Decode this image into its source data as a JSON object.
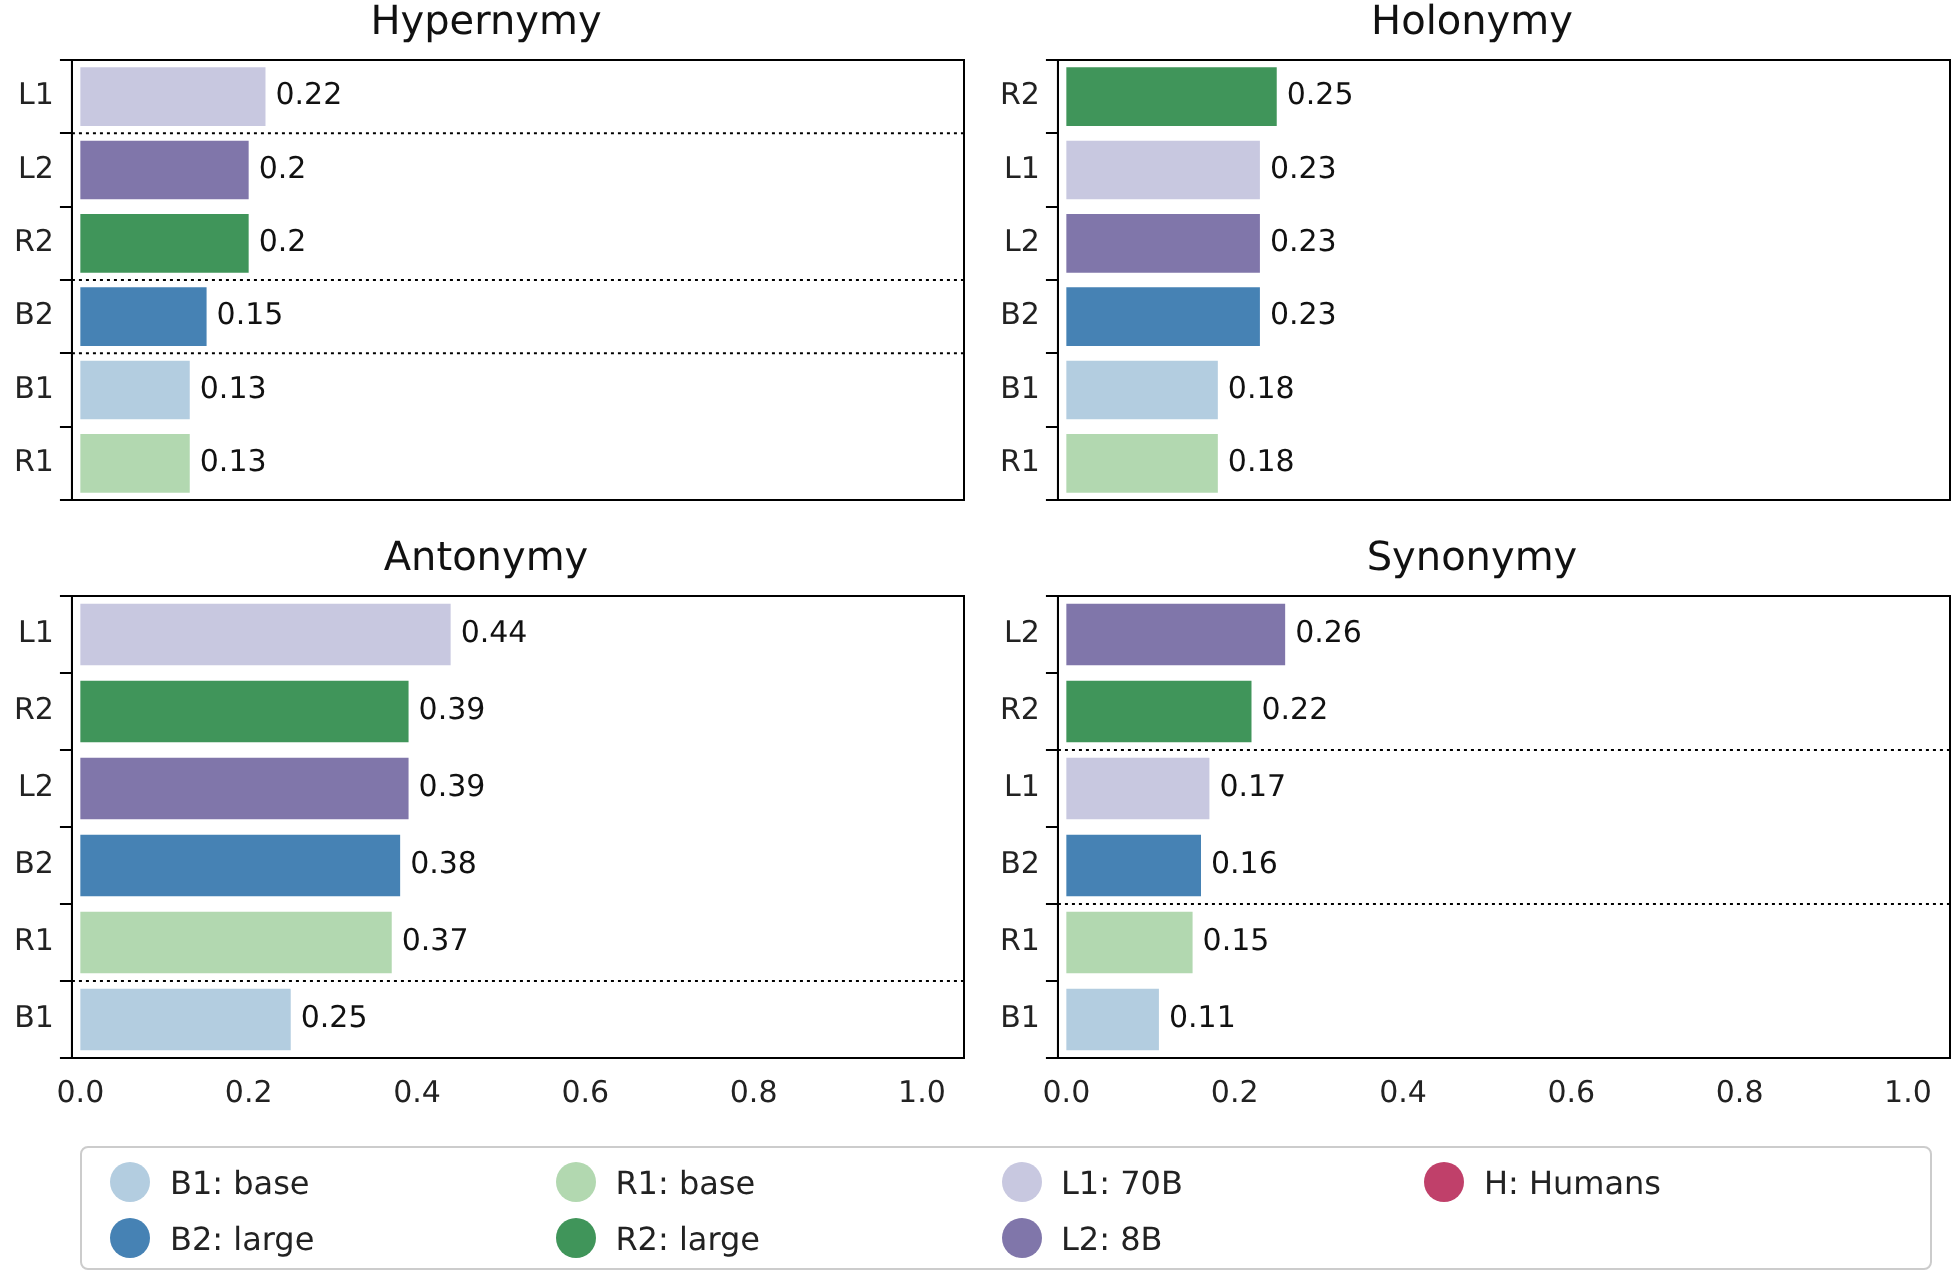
{
  "chart_data": [
    {
      "type": "bar",
      "orientation": "horizontal",
      "title": "Hypernymy",
      "categories": [
        "L1",
        "L2",
        "R2",
        "B2",
        "B1",
        "R1"
      ],
      "values": [
        0.22,
        0.2,
        0.2,
        0.15,
        0.13,
        0.13
      ],
      "colors": [
        "#c8c8e0",
        "#8076aa",
        "#40955a",
        "#4682b4",
        "#b3cde0",
        "#b2d8b0"
      ],
      "data_labels": true,
      "xlim": [
        -0.01,
        1.05
      ],
      "xticks": [
        {
          "value": 0,
          "label": null
        },
        {
          "value": 0.2,
          "label": null
        },
        {
          "value": 0.4,
          "label": null
        },
        {
          "value": 0.6,
          "label": null
        },
        {
          "value": 0.8,
          "label": null
        },
        {
          "value": 1,
          "label": null
        }
      ],
      "tick_labels": "y",
      "grid": false,
      "legend": false
    },
    {
      "type": "bar",
      "orientation": "horizontal",
      "title": "Holonymy",
      "categories": [
        "R2",
        "L1",
        "L2",
        "B2",
        "B1",
        "R1"
      ],
      "values": [
        0.25,
        0.23,
        0.23,
        0.23,
        0.18,
        0.18
      ],
      "colors": [
        "#40955a",
        "#c8c8e0",
        "#8076aa",
        "#4682b4",
        "#b3cde0",
        "#b2d8b0"
      ],
      "data_labels": true,
      "xlim": [
        -0.01,
        1.05
      ],
      "xticks": [
        {
          "value": 0,
          "label": null
        },
        {
          "value": 0.2,
          "label": null
        },
        {
          "value": 0.4,
          "label": null
        },
        {
          "value": 0.6,
          "label": null
        },
        {
          "value": 0.8,
          "label": null
        },
        {
          "value": 1,
          "label": null
        }
      ],
      "tick_labels": "y",
      "grid": false,
      "legend": false
    },
    {
      "type": "bar",
      "orientation": "horizontal",
      "title": "Antonymy",
      "categories": [
        "L1",
        "R2",
        "L2",
        "B2",
        "R1",
        "B1"
      ],
      "values": [
        0.44,
        0.39,
        0.39,
        0.38,
        0.37,
        0.25
      ],
      "colors": [
        "#c8c8e0",
        "#40955a",
        "#8076aa",
        "#4682b4",
        "#b2d8b0",
        "#b3cde0"
      ],
      "data_labels": true,
      "xlim": [
        -0.01,
        1.05
      ],
      "xticks": [
        {
          "value": 0,
          "label": "0.0"
        },
        {
          "value": 0.2,
          "label": "0.2"
        },
        {
          "value": 0.4,
          "label": "0.4"
        },
        {
          "value": 0.6,
          "label": "0.6"
        },
        {
          "value": 0.8,
          "label": "0.8"
        },
        {
          "value": 1,
          "label": "1.0"
        }
      ],
      "grid": false,
      "legend": false
    },
    {
      "type": "bar",
      "orientation": "horizontal",
      "title": "Synonymy",
      "categories": [
        "L2",
        "R2",
        "L1",
        "B2",
        "R1",
        "B1"
      ],
      "values": [
        0.26,
        0.22,
        0.17,
        0.16,
        0.15,
        0.11
      ],
      "colors": [
        "#8076aa",
        "#40955a",
        "#c8c8e0",
        "#4682b4",
        "#b2d8b0",
        "#b3cde0"
      ],
      "data_labels": true,
      "xlim": [
        -0.01,
        1.05
      ],
      "xticks": [
        {
          "value": 0,
          "label": "0.0"
        },
        {
          "value": 0.2,
          "label": "0.2"
        },
        {
          "value": 0.4,
          "label": "0.4"
        },
        {
          "value": 0.6,
          "label": "0.6"
        },
        {
          "value": 0.8,
          "label": "0.8"
        },
        {
          "value": 1,
          "label": "1.0"
        }
      ],
      "grid": false,
      "legend": false
    },
    {
      "type": "other",
      "categories": [
        "B1: base",
        "B2: large",
        "R1: base",
        "R2: large",
        "L1: 70B",
        "L2: 8B",
        "H: Humans"
      ],
      "colors": [
        "#b3cde0",
        "#4682b4",
        "#b2d8b0",
        "#40955a",
        "#c8c8e0",
        "#8076aa",
        "#c0406a"
      ]
    }
  ]
}
